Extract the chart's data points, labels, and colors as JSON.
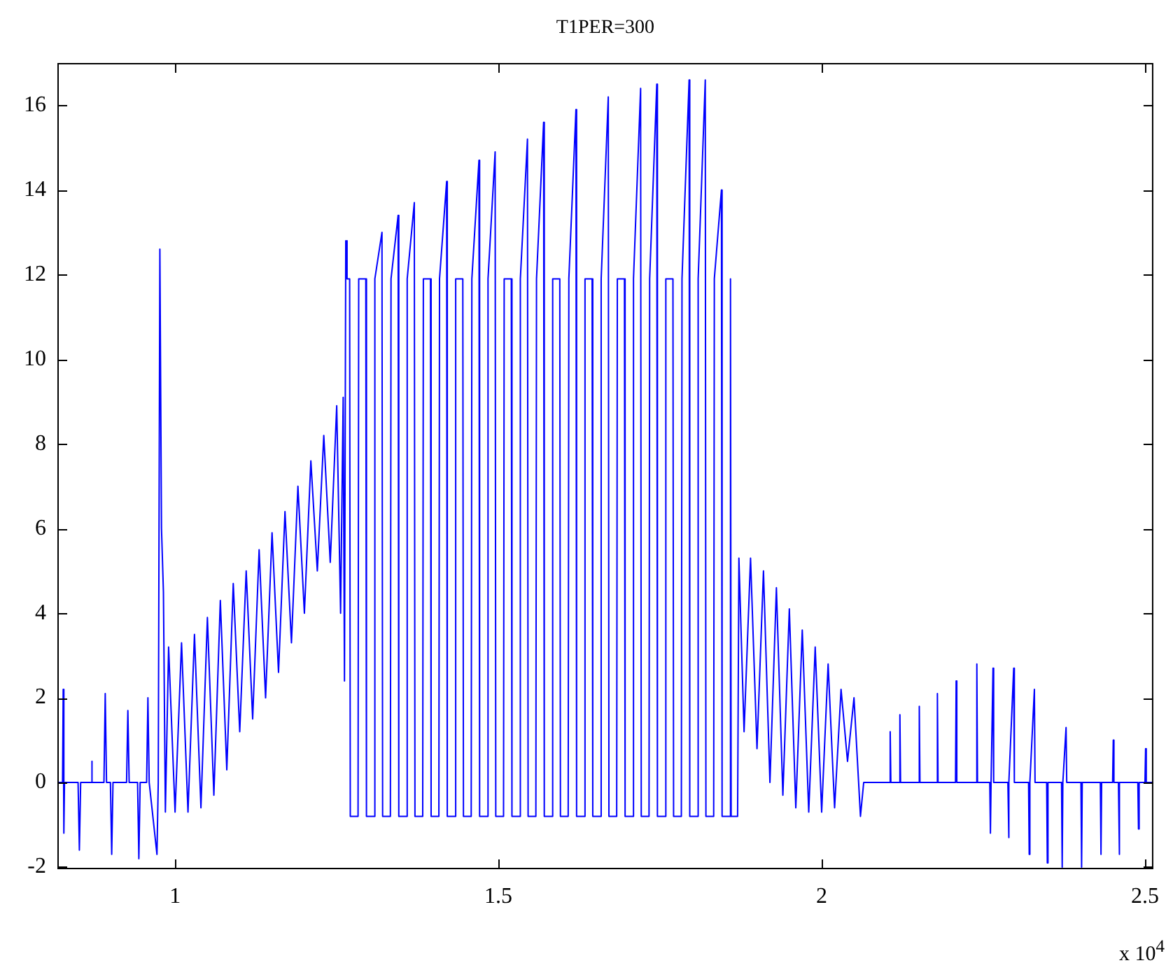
{
  "chart_data": {
    "type": "line",
    "title": "T1PER=300",
    "annotations": [
      "x 10$^{4}$"
    ],
    "color": "#0000ff",
    "marker": "none",
    "xlim": [
      0.818,
      2.513
    ],
    "xticks": [
      1,
      1.5,
      2,
      2.5
    ],
    "ylim": [
      -2.05,
      17
    ],
    "yticks": [
      -2,
      0,
      2,
      4,
      6,
      8,
      10,
      12,
      14,
      16
    ],
    "x": [
      0.818,
      0.826,
      0.827,
      0.828,
      0.829,
      0.85,
      0.852,
      0.854,
      0.87,
      0.871,
      0.872,
      0.89,
      0.892,
      0.894,
      0.9,
      0.902,
      0.904,
      0.925,
      0.927,
      0.929,
      0.942,
      0.944,
      0.946,
      0.956,
      0.958,
      0.96,
      0.972,
      0.974,
      0.9765,
      0.979,
      0.982,
      0.985,
      0.99,
      1.0,
      1.01,
      1.02,
      1.03,
      1.04,
      1.05,
      1.06,
      1.07,
      1.08,
      1.09,
      1.1,
      1.11,
      1.12,
      1.13,
      1.14,
      1.15,
      1.16,
      1.17,
      1.18,
      1.19,
      1.2,
      1.21,
      1.22,
      1.23,
      1.24,
      1.25,
      1.256,
      1.26,
      1.262,
      1.264,
      1.266,
      1.27,
      1.271,
      1.283,
      1.284,
      1.295,
      1.296,
      1.308,
      1.309,
      1.32,
      1.321,
      1.333,
      1.334,
      1.345,
      1.346,
      1.358,
      1.359,
      1.37,
      1.371,
      1.383,
      1.384,
      1.395,
      1.396,
      1.408,
      1.409,
      1.42,
      1.421,
      1.433,
      1.434,
      1.445,
      1.446,
      1.458,
      1.459,
      1.47,
      1.471,
      1.483,
      1.484,
      1.495,
      1.496,
      1.508,
      1.509,
      1.52,
      1.521,
      1.533,
      1.534,
      1.545,
      1.546,
      1.558,
      1.559,
      1.57,
      1.571,
      1.583,
      1.584,
      1.595,
      1.596,
      1.608,
      1.609,
      1.62,
      1.621,
      1.633,
      1.634,
      1.645,
      1.646,
      1.658,
      1.659,
      1.67,
      1.671,
      1.683,
      1.684,
      1.695,
      1.696,
      1.708,
      1.709,
      1.72,
      1.721,
      1.733,
      1.734,
      1.745,
      1.746,
      1.758,
      1.759,
      1.77,
      1.771,
      1.783,
      1.784,
      1.795,
      1.796,
      1.808,
      1.809,
      1.82,
      1.821,
      1.833,
      1.834,
      1.845,
      1.846,
      1.858,
      1.859,
      1.86,
      1.87,
      1.872,
      1.88,
      1.89,
      1.9,
      1.91,
      1.92,
      1.93,
      1.94,
      1.95,
      1.96,
      1.97,
      1.98,
      1.99,
      2.0,
      2.01,
      2.02,
      2.03,
      2.04,
      2.05,
      2.06,
      2.065,
      2.07,
      2.105,
      2.106,
      2.107,
      2.12,
      2.121,
      2.122,
      2.15,
      2.151,
      2.152,
      2.178,
      2.179,
      2.18,
      2.207,
      2.208,
      2.209,
      2.239,
      2.24,
      2.241,
      2.26,
      2.261,
      2.262,
      2.265,
      2.266,
      2.288,
      2.289,
      2.29,
      2.297,
      2.298,
      2.32,
      2.321,
      2.322,
      2.329,
      2.33,
      2.348,
      2.349,
      2.35,
      2.371,
      2.372,
      2.373,
      2.378,
      2.379,
      2.401,
      2.402,
      2.403,
      2.431,
      2.432,
      2.433,
      2.45,
      2.451,
      2.452,
      2.459,
      2.46,
      2.461,
      2.489,
      2.49,
      2.491,
      2.5,
      2.501,
      2.502,
      2.513
    ],
    "values": [
      0,
      0,
      2.2,
      -1.2,
      0,
      0,
      -1.6,
      0,
      0,
      0.5,
      0,
      0,
      2.1,
      0,
      0,
      -1.7,
      0,
      0,
      1.7,
      0,
      0,
      -1.8,
      0,
      0,
      2.0,
      0,
      -1.7,
      0,
      12.6,
      6.0,
      4.5,
      -0.7,
      3.2,
      -0.7,
      3.3,
      -0.7,
      3.5,
      -0.6,
      3.9,
      -0.3,
      4.3,
      0.3,
      4.7,
      1.2,
      5.0,
      1.5,
      5.5,
      2.0,
      5.9,
      2.6,
      6.4,
      3.3,
      7.0,
      4.0,
      7.6,
      5.0,
      8.2,
      5.2,
      8.9,
      4.0,
      9.1,
      2.4,
      12.8,
      11.9,
      11.9,
      -0.8,
      -0.8,
      11.9,
      11.9,
      -0.8,
      -0.8,
      11.9,
      13.0,
      -0.8,
      -0.8,
      11.9,
      13.4,
      -0.8,
      -0.8,
      11.9,
      13.7,
      -0.8,
      -0.8,
      11.9,
      11.9,
      -0.8,
      -0.8,
      11.9,
      14.2,
      -0.8,
      -0.8,
      11.9,
      11.9,
      -0.8,
      -0.8,
      11.9,
      14.7,
      -0.8,
      -0.8,
      11.9,
      14.9,
      -0.8,
      -0.8,
      11.9,
      11.9,
      -0.8,
      -0.8,
      11.9,
      15.2,
      -0.8,
      -0.8,
      11.9,
      15.6,
      -0.8,
      -0.8,
      11.9,
      11.9,
      -0.8,
      -0.8,
      11.9,
      15.9,
      -0.8,
      -0.8,
      11.9,
      11.9,
      -0.8,
      -0.8,
      11.9,
      16.2,
      -0.8,
      -0.8,
      11.9,
      11.9,
      -0.8,
      -0.8,
      11.9,
      16.4,
      -0.8,
      -0.8,
      11.9,
      16.5,
      -0.8,
      -0.8,
      11.9,
      11.9,
      -0.8,
      -0.8,
      11.9,
      16.6,
      -0.8,
      -0.8,
      11.9,
      16.6,
      -0.8,
      -0.8,
      11.9,
      14.0,
      -0.8,
      -0.8,
      11.9,
      -0.8,
      -0.8,
      5.3,
      1.2,
      5.3,
      0.8,
      5.0,
      0.0,
      4.6,
      -0.3,
      4.1,
      -0.6,
      3.6,
      -0.7,
      3.2,
      -0.7,
      2.8,
      -0.6,
      2.2,
      0.5,
      2.0,
      -0.8,
      0,
      0,
      0,
      1.2,
      0,
      0,
      1.6,
      0,
      0,
      1.8,
      0,
      0,
      2.1,
      0,
      0,
      2.4,
      0,
      0,
      2.8,
      0,
      0,
      -1.2,
      0,
      2.7,
      0,
      0,
      -1.3,
      0,
      2.7,
      0,
      0,
      -1.7,
      0,
      2.2,
      0,
      0,
      -1.9,
      0,
      0,
      -2.0,
      0,
      1.3,
      0,
      0,
      -2.0,
      0,
      0,
      -1.7,
      0,
      0,
      1.0,
      0,
      0,
      -1.7,
      0,
      0,
      -1.1,
      0,
      0,
      0.8,
      0,
      0
    ]
  }
}
